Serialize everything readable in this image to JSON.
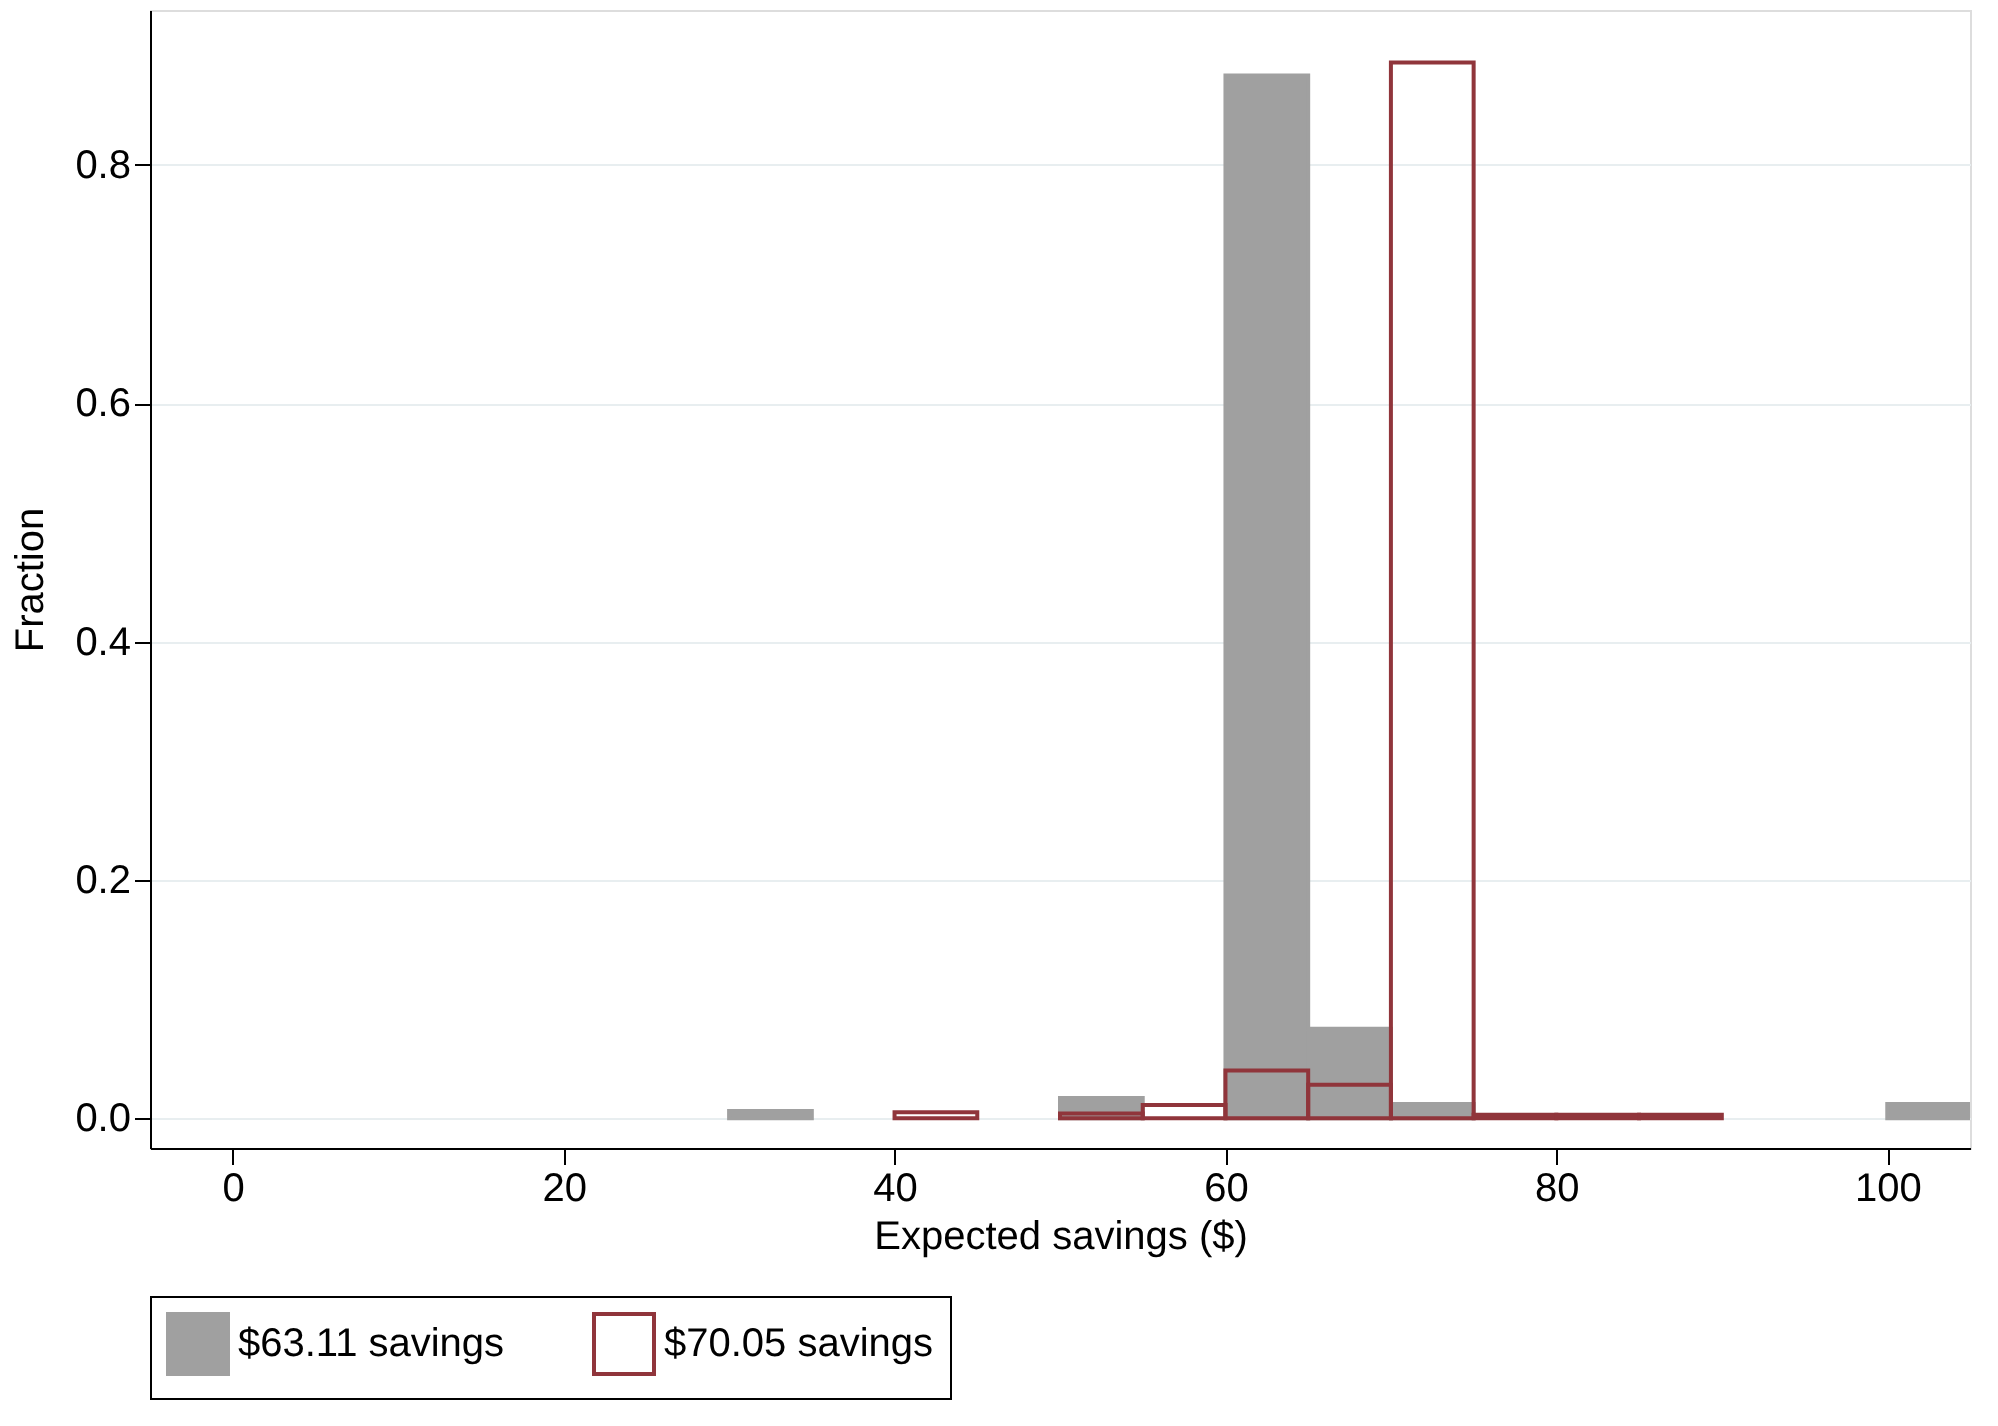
{
  "chart_data": {
    "type": "histogram",
    "xlabel": "Expected savings ($)",
    "ylabel": "Fraction",
    "bins": [
      30,
      35,
      40,
      45,
      50,
      55,
      60,
      65,
      70,
      75,
      80,
      85,
      90,
      95,
      100,
      105
    ],
    "series": [
      {
        "name": "$63.11 savings",
        "color": "#a0a0a0",
        "values": [
          0.006,
          0,
          0,
          0,
          0.017,
          0,
          0.875,
          0.075,
          0.012,
          0,
          0,
          0,
          0,
          0,
          0.012
        ]
      },
      {
        "name": "$70.05 savings",
        "color": "#90353b",
        "values": [
          0,
          0,
          0.005,
          0,
          0.004,
          0.011,
          0.04,
          0.028,
          0.886,
          0.003,
          0.003,
          0.003,
          0,
          0,
          0
        ]
      }
    ],
    "xlim": [
      -5,
      105
    ],
    "xticks": [
      0,
      20,
      40,
      60,
      80,
      100
    ],
    "ylim": [
      -0.025,
      0.93
    ],
    "yticks": [
      {
        "value": 0,
        "label": "0.0"
      },
      0.2,
      0.4,
      0.6,
      0.8
    ],
    "grid": "y",
    "legend": "bottom"
  }
}
